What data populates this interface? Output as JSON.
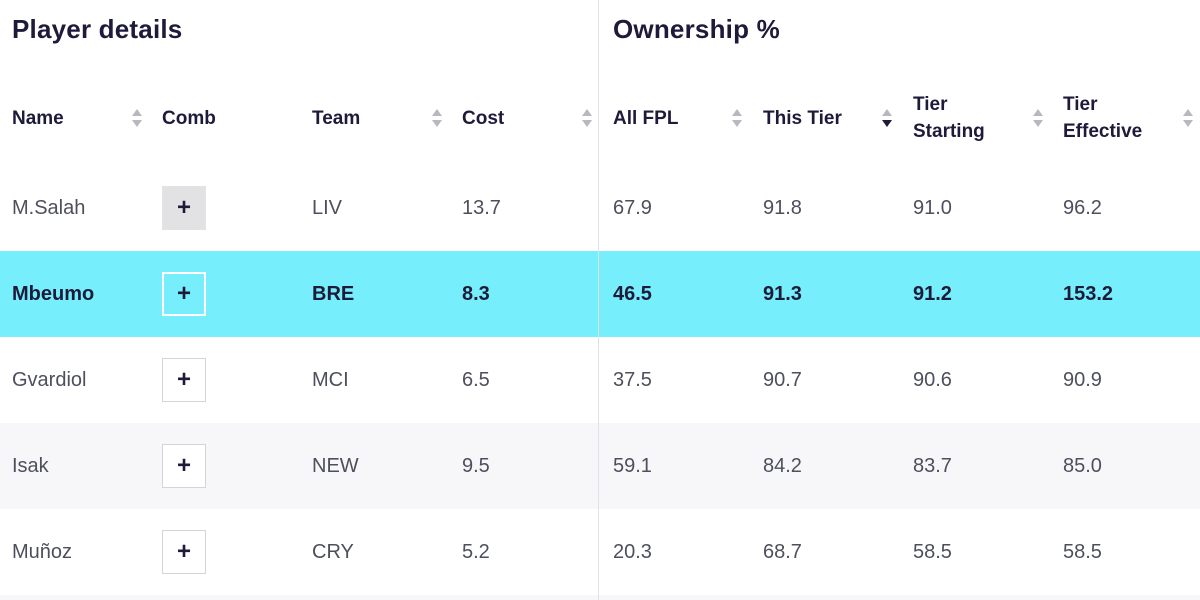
{
  "sections": {
    "player_details": "Player details",
    "ownership": "Ownership %"
  },
  "columns": {
    "name": "Name",
    "comb": "Comb",
    "team": "Team",
    "cost": "Cost",
    "all_fpl": "All FPL",
    "this_tier": "This Tier",
    "tier_starting_1": "Tier",
    "tier_starting_2": "Starting",
    "tier_effective_1": "Tier",
    "tier_effective_2": "Effective"
  },
  "sort": {
    "active_column": "this_tier",
    "direction": "descending"
  },
  "add_button_glyph": "+",
  "colors": {
    "highlight_row": "#76eefb",
    "text_dark": "#1e1b3a",
    "text_muted": "#4d4f5c",
    "alt_row": "#f7f7f9"
  },
  "rows": [
    {
      "name": "M.Salah",
      "team": "LIV",
      "cost": "13.7",
      "all_fpl": "67.9",
      "this_tier": "91.8",
      "tier_starting": "91.0",
      "tier_effective": "96.2"
    },
    {
      "name": "Mbeumo",
      "team": "BRE",
      "cost": "8.3",
      "all_fpl": "46.5",
      "this_tier": "91.3",
      "tier_starting": "91.2",
      "tier_effective": "153.2"
    },
    {
      "name": "Gvardiol",
      "team": "MCI",
      "cost": "6.5",
      "all_fpl": "37.5",
      "this_tier": "90.7",
      "tier_starting": "90.6",
      "tier_effective": "90.9"
    },
    {
      "name": "Isak",
      "team": "NEW",
      "cost": "9.5",
      "all_fpl": "59.1",
      "this_tier": "84.2",
      "tier_starting": "83.7",
      "tier_effective": "85.0"
    },
    {
      "name": "Muñoz",
      "team": "CRY",
      "cost": "5.2",
      "all_fpl": "20.3",
      "this_tier": "68.7",
      "tier_starting": "58.5",
      "tier_effective": "58.5"
    }
  ]
}
